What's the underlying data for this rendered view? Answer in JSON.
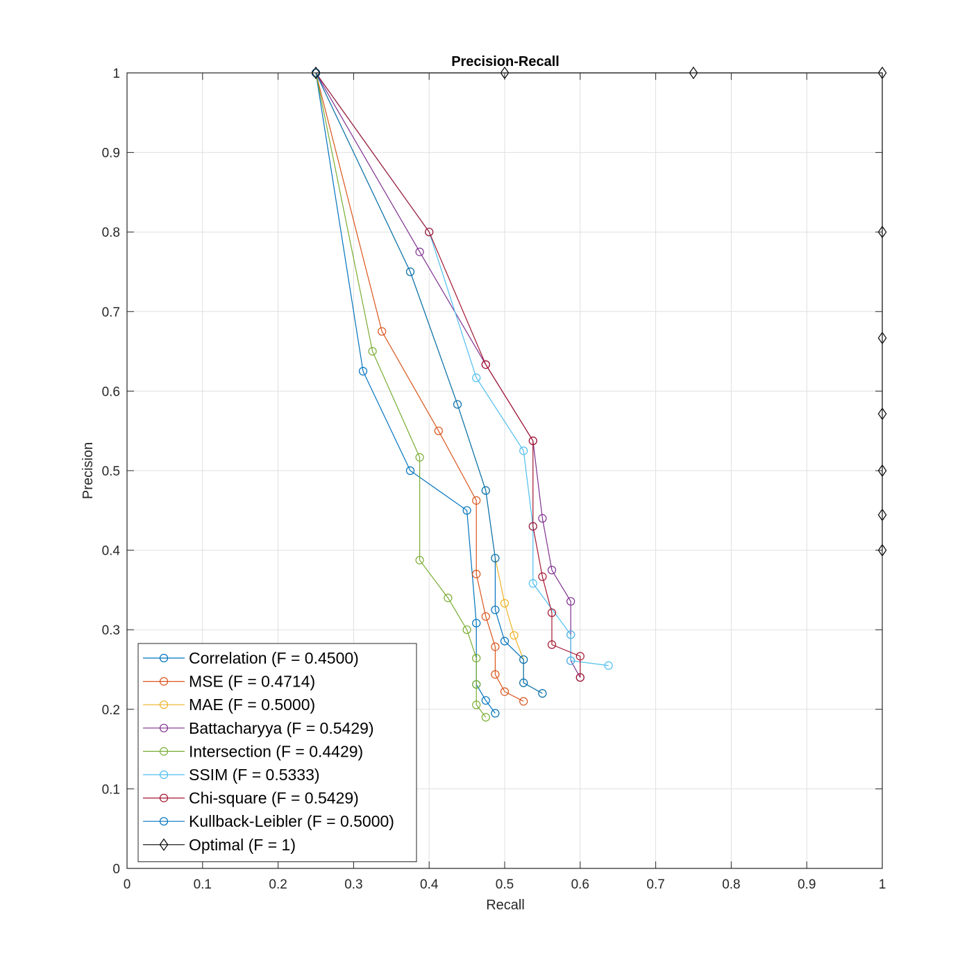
{
  "chart_data": {
    "type": "line",
    "title": "Precision-Recall",
    "xlabel": "Recall",
    "ylabel": "Precision",
    "xlim": [
      0,
      1
    ],
    "ylim": [
      0,
      1
    ],
    "xticks": [
      "0",
      "0.1",
      "0.2",
      "0.3",
      "0.4",
      "0.5",
      "0.6",
      "0.7",
      "0.8",
      "0.9",
      "1"
    ],
    "yticks": [
      "0",
      "0.1",
      "0.2",
      "0.3",
      "0.4",
      "0.5",
      "0.6",
      "0.7",
      "0.8",
      "0.9",
      "1"
    ],
    "grid": true,
    "legend_position": "bottom-left",
    "series": [
      {
        "name": "Correlation (F = 0.4500)",
        "color": "#0072BD",
        "marker": "circle",
        "x": [
          0.25,
          0.3125,
          0.375,
          0.45,
          0.4625,
          0.4625,
          0.475,
          0.4875
        ],
        "y": [
          1.0,
          0.625,
          0.5,
          0.45,
          0.3083,
          0.2313,
          0.2111,
          0.195
        ]
      },
      {
        "name": "MSE (F = 0.4714)",
        "color": "#D95319",
        "marker": "circle",
        "x": [
          0.25,
          0.3375,
          0.4125,
          0.4625,
          0.4625,
          0.475,
          0.4875,
          0.4875,
          0.5,
          0.525
        ],
        "y": [
          1.0,
          0.675,
          0.55,
          0.4625,
          0.37,
          0.3167,
          0.2786,
          0.2438,
          0.2222,
          0.21
        ]
      },
      {
        "name": "MAE (F = 0.5000)",
        "color": "#EDB120",
        "marker": "circle",
        "x": [
          0.25,
          0.375,
          0.4375,
          0.475,
          0.4875,
          0.5,
          0.5125,
          0.525,
          0.525,
          0.55
        ],
        "y": [
          1.0,
          0.75,
          0.5833,
          0.475,
          0.39,
          0.3333,
          0.2929,
          0.2625,
          0.2333,
          0.22
        ]
      },
      {
        "name": "Battacharyya (F = 0.5429)",
        "color": "#7E2F8E",
        "marker": "circle",
        "x": [
          0.25,
          0.3875,
          0.475,
          0.5375,
          0.55,
          0.5625,
          0.5875,
          0.5875,
          0.5875,
          0.6
        ],
        "y": [
          1.0,
          0.775,
          0.6333,
          0.5375,
          0.44,
          0.375,
          0.3357,
          0.2938,
          0.2611,
          0.24
        ]
      },
      {
        "name": "Intersection (F = 0.4429)",
        "color": "#77AC30",
        "marker": "circle",
        "x": [
          0.25,
          0.325,
          0.3875,
          0.3875,
          0.425,
          0.45,
          0.4625,
          0.4625,
          0.4625,
          0.475
        ],
        "y": [
          1.0,
          0.65,
          0.5167,
          0.3875,
          0.34,
          0.3,
          0.2643,
          0.2313,
          0.2056,
          0.19
        ]
      },
      {
        "name": "SSIM (F = 0.5333)",
        "color": "#4DBEEE",
        "marker": "circle",
        "x": [
          0.25,
          0.4,
          0.4625,
          0.525,
          0.5375,
          0.5375,
          0.5875,
          0.5875,
          0.6375
        ],
        "y": [
          1.0,
          0.8,
          0.6167,
          0.525,
          0.43,
          0.3583,
          0.2938,
          0.2611,
          0.255
        ]
      },
      {
        "name": "Chi-square (F = 0.5429)",
        "color": "#A2142F",
        "marker": "circle",
        "x": [
          0.25,
          0.4,
          0.475,
          0.5375,
          0.5375,
          0.55,
          0.5625,
          0.5625,
          0.6,
          0.6
        ],
        "y": [
          1.0,
          0.8,
          0.6333,
          0.5375,
          0.43,
          0.3667,
          0.3214,
          0.2813,
          0.2667,
          0.24
        ]
      },
      {
        "name": "Kullback-Leibler (F = 0.5000)",
        "color": "#0072BD",
        "marker": "circle",
        "x": [
          0.25,
          0.375,
          0.4375,
          0.475,
          0.4875,
          0.4875,
          0.5,
          0.525,
          0.525,
          0.55
        ],
        "y": [
          1.0,
          0.75,
          0.5833,
          0.475,
          0.39,
          0.325,
          0.2857,
          0.2625,
          0.2333,
          0.22
        ]
      },
      {
        "name": "Optimal (F = 1)",
        "color": "#000000",
        "marker": "diamond",
        "x": [
          0.25,
          0.5,
          0.75,
          1.0,
          1.0,
          1.0,
          1.0,
          1.0,
          1.0,
          1.0
        ],
        "y": [
          1.0,
          1.0,
          1.0,
          1.0,
          0.8,
          0.6667,
          0.5714,
          0.5,
          0.4444,
          0.4
        ]
      }
    ]
  }
}
